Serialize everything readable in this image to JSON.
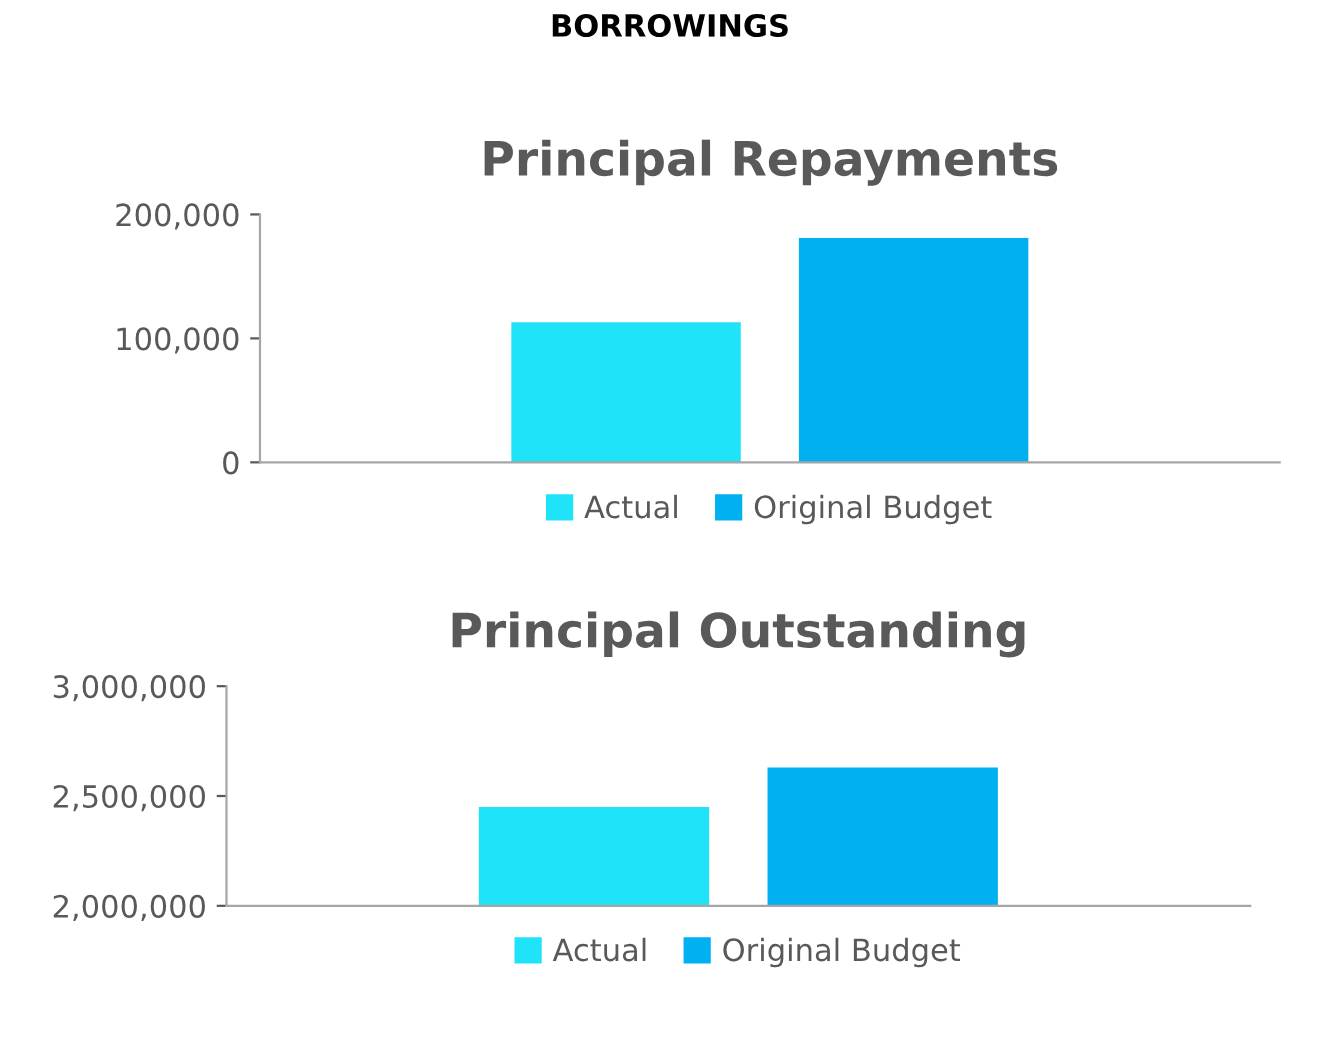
{
  "chart_data": [
    {
      "type": "bar",
      "title": "Principal Repayments",
      "annotations": [
        "BORROWINGS"
      ],
      "categories": [
        null
      ],
      "series": [
        {
          "name": "Actual",
          "color": "#1fe3f9",
          "values": [
            113000
          ]
        },
        {
          "name": "Original Budget",
          "color": "#00b0f0",
          "values": [
            181000
          ]
        }
      ],
      "ylim": [
        0,
        200000
      ],
      "yticks": [
        {
          "value": 0,
          "label": "0"
        },
        {
          "value": 100000,
          "label": "100,000"
        },
        {
          "value": 200000,
          "label": "200,000"
        }
      ],
      "legend": "bottom",
      "grid": false,
      "tick_labels": "y"
    },
    {
      "type": "bar",
      "title": "Principal Outstanding",
      "categories": [
        null
      ],
      "series": [
        {
          "name": "Actual",
          "color": "#1fe3f9",
          "values": [
            2450000
          ]
        },
        {
          "name": "Original Budget",
          "color": "#00b0f0",
          "values": [
            2630000
          ]
        }
      ],
      "ylim": [
        2000000,
        3000000
      ],
      "yticks": [
        {
          "value": 2000000,
          "label": "2,000,000"
        },
        {
          "value": 2500000,
          "label": "2,500,000"
        },
        {
          "value": 3000000,
          "label": "3,000,000"
        }
      ],
      "legend": "bottom",
      "grid": false,
      "tick_labels": "y"
    }
  ]
}
